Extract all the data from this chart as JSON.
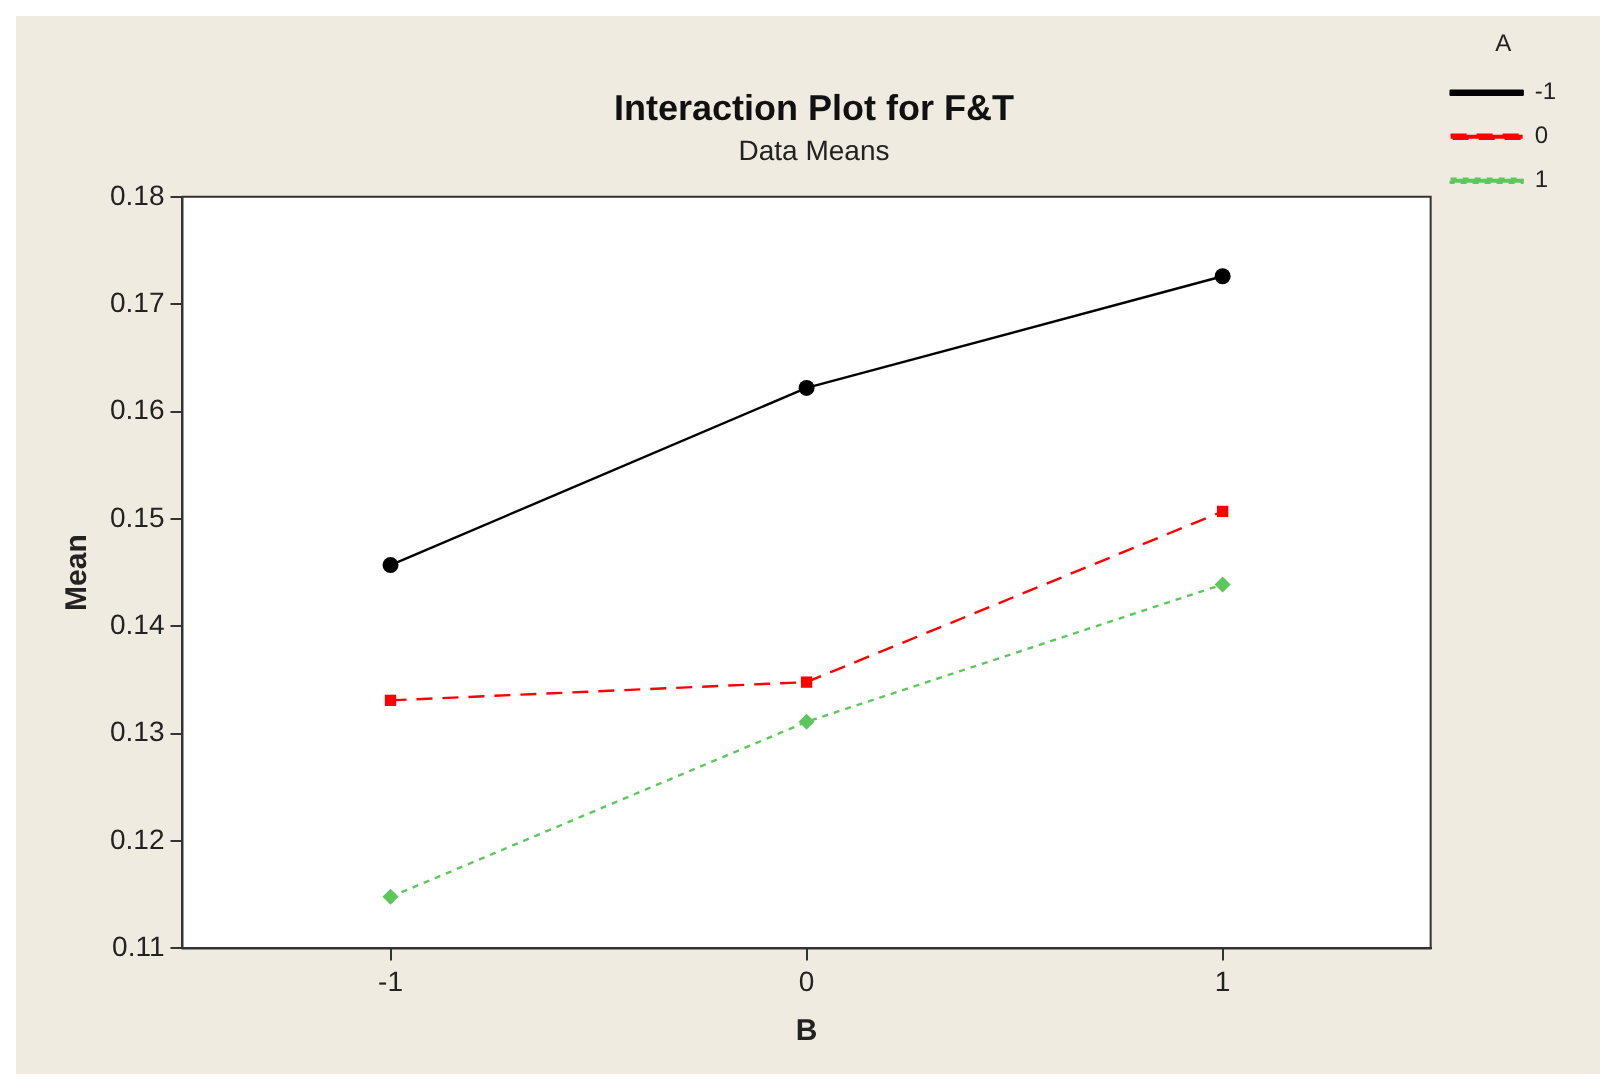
{
  "chart_data": {
    "type": "line",
    "title": "Interaction Plot for F&T",
    "subtitle": "Data Means",
    "xlabel": "B",
    "ylabel": "Mean",
    "legend_title": "A",
    "legend": "top right",
    "x": [
      -1,
      0,
      1
    ],
    "xlim": [
      -1.5,
      1.5
    ],
    "xticks": [
      -1,
      0,
      1
    ],
    "ylim": [
      0.11,
      0.18
    ],
    "yticks": [
      0.11,
      0.12,
      0.13,
      0.14,
      0.15,
      0.16,
      0.17,
      0.18
    ],
    "series": [
      {
        "name": "-1",
        "color": "#000000",
        "values": [
          0.1457,
          0.1622,
          0.1726
        ],
        "marker": "circle",
        "line_style": "solid"
      },
      {
        "name": "0",
        "color": "#ff0000",
        "values": [
          0.1331,
          0.1348,
          0.1507
        ],
        "marker": "square",
        "line_style": "dashed"
      },
      {
        "name": "1",
        "color": "#5cc85c",
        "values": [
          0.1148,
          0.1311,
          0.1439
        ],
        "marker": "diamond",
        "line_style": "dotted"
      }
    ]
  }
}
